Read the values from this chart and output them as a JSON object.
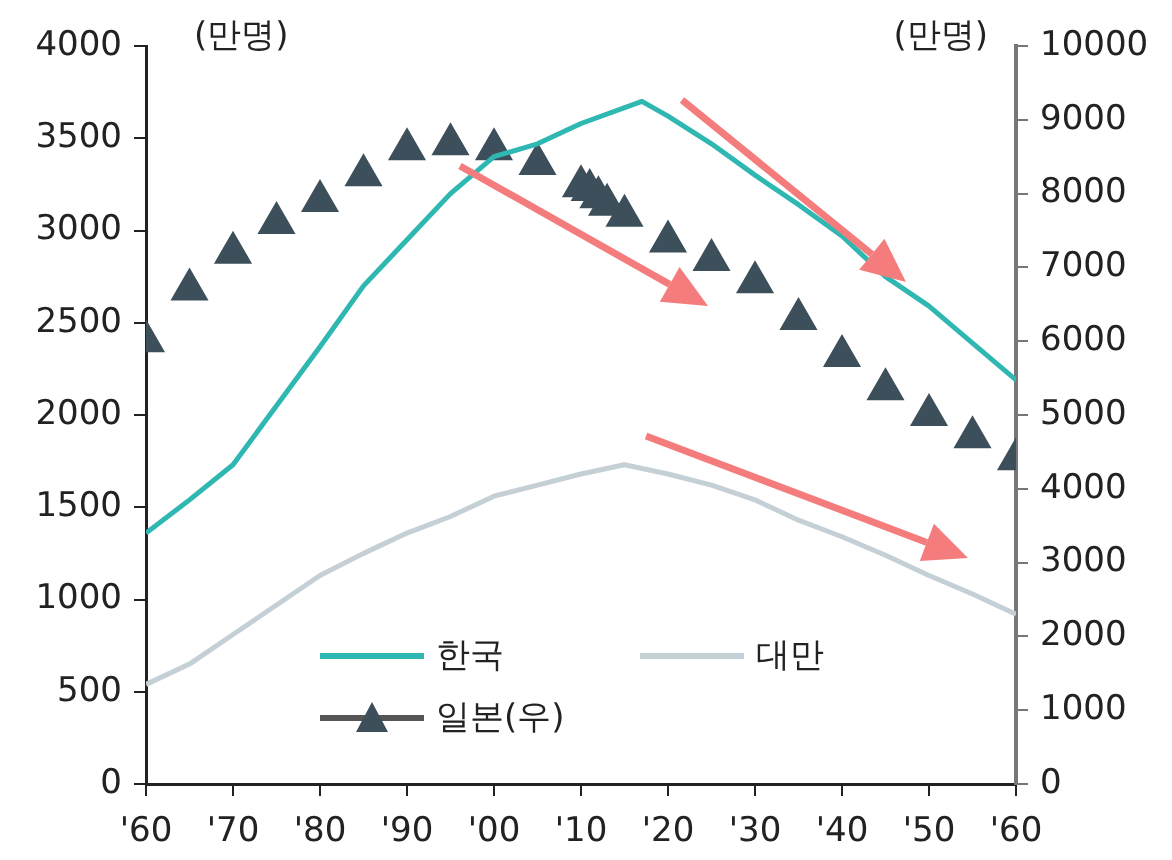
{
  "chart_data": {
    "type": "line",
    "ylabel": "(만명)",
    "y2label": "(만명)",
    "xlim": [
      1960,
      2060
    ],
    "xticks": [
      {
        "value": 1960,
        "label": "'60"
      },
      {
        "value": 1970,
        "label": "'70"
      },
      {
        "value": 1980,
        "label": "'80"
      },
      {
        "value": 1990,
        "label": "'90"
      },
      {
        "value": 2000,
        "label": "'00"
      },
      {
        "value": 2010,
        "label": "'10"
      },
      {
        "value": 2020,
        "label": "'20"
      },
      {
        "value": 2030,
        "label": "'30"
      },
      {
        "value": 2040,
        "label": "'40"
      },
      {
        "value": 2050,
        "label": "'50"
      },
      {
        "value": 2060,
        "label": "'60"
      }
    ],
    "ylim": [
      0,
      4000
    ],
    "yticks": [
      0,
      500,
      1000,
      1500,
      2000,
      2500,
      3000,
      3500,
      4000
    ],
    "y2lim": [
      0,
      10000
    ],
    "y2ticks": [
      0,
      1000,
      2000,
      3000,
      4000,
      5000,
      6000,
      7000,
      8000,
      9000,
      10000
    ],
    "grid": false,
    "legend": "bottom",
    "series": [
      {
        "name": "한국",
        "color": "#2fb7b2",
        "x": [
          1960,
          1965,
          1970,
          1975,
          1980,
          1985,
          1990,
          1995,
          2000,
          2005,
          2010,
          2017,
          2020,
          2025,
          2030,
          2035,
          2040,
          2045,
          2050,
          2055,
          2060
        ],
        "values": [
          1360,
          1540,
          1730,
          2050,
          2370,
          2700,
          2950,
          3200,
          3400,
          3470,
          3580,
          3700,
          3620,
          3470,
          3300,
          3140,
          2970,
          2750,
          2590,
          2390,
          2190
        ]
      },
      {
        "name": "대만",
        "color": "#c5d0d6",
        "x": [
          1960,
          1965,
          1970,
          1975,
          1980,
          1985,
          1990,
          1995,
          2000,
          2005,
          2010,
          2015,
          2020,
          2025,
          2030,
          2035,
          2040,
          2045,
          2050,
          2055,
          2060
        ],
        "values": [
          540,
          650,
          810,
          970,
          1130,
          1250,
          1360,
          1450,
          1560,
          1620,
          1680,
          1730,
          1680,
          1620,
          1540,
          1430,
          1340,
          1240,
          1130,
          1030,
          920
        ]
      },
      {
        "name": "일본(우)",
        "type": "scatter",
        "axis": "y2",
        "marker": "triangle",
        "color": "#3d4f5a",
        "x": [
          1960,
          1965,
          1970,
          1975,
          1980,
          1985,
          1990,
          1995,
          2000,
          2005,
          2010,
          2011,
          2012,
          2013,
          2015,
          2020,
          2025,
          2030,
          2035,
          2040,
          2045,
          2050,
          2055,
          2060
        ],
        "values": [
          6000,
          6700,
          7200,
          7600,
          7900,
          8250,
          8600,
          8670,
          8600,
          8400,
          8100,
          8050,
          7950,
          7850,
          7700,
          7350,
          7100,
          6800,
          6300,
          5800,
          5350,
          5000,
          4700,
          4400
        ]
      }
    ]
  }
}
